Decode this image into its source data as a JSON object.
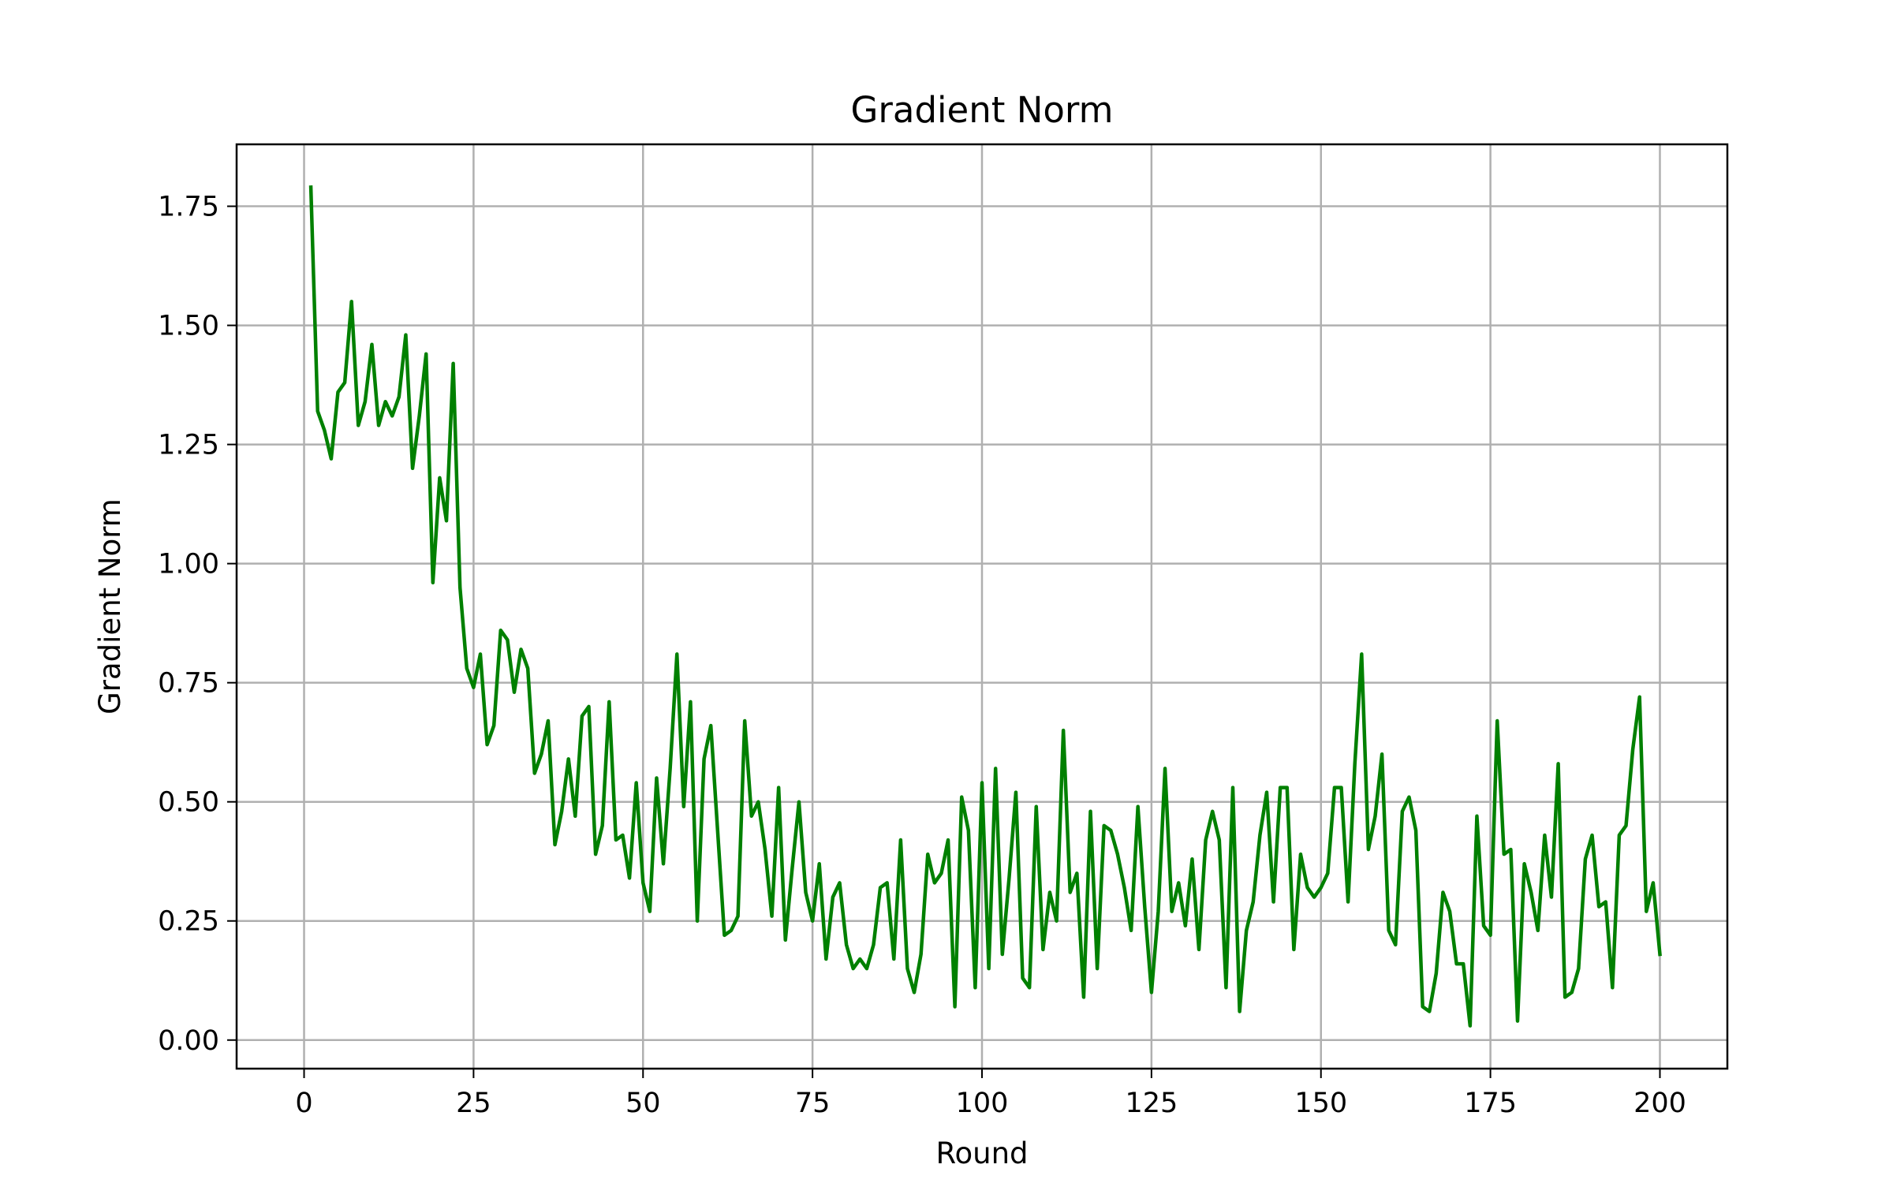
{
  "chart_data": {
    "type": "line",
    "title": "Gradient Norm",
    "xlabel": "Round",
    "ylabel": "Gradient Norm",
    "xlim": [
      -9.95,
      209.95
    ],
    "ylim": [
      -0.06,
      1.88
    ],
    "grid": true,
    "legend": "none",
    "color": "#008000",
    "x_ticks": [
      0,
      25,
      50,
      75,
      100,
      125,
      150,
      175,
      200
    ],
    "x_tick_labels": [
      "0",
      "25",
      "50",
      "75",
      "100",
      "125",
      "150",
      "175",
      "200"
    ],
    "y_ticks": [
      0.0,
      0.25,
      0.5,
      0.75,
      1.0,
      1.25,
      1.5,
      1.75
    ],
    "y_tick_labels": [
      "0.00",
      "0.25",
      "0.50",
      "0.75",
      "1.00",
      "1.25",
      "1.50",
      "1.75"
    ],
    "series": [
      {
        "x": [
          1,
          2,
          3,
          4,
          5,
          6,
          7,
          8,
          9,
          10,
          11,
          12,
          13,
          14,
          15,
          16,
          17,
          18,
          19,
          20,
          21,
          22,
          23,
          24,
          25,
          26,
          27,
          28,
          29,
          30,
          31,
          32,
          33,
          34,
          35,
          36,
          37,
          38,
          39,
          40,
          41,
          42,
          43,
          44,
          45,
          46,
          47,
          48,
          49,
          50,
          51,
          52,
          53,
          54,
          55,
          56,
          57,
          58,
          59,
          60,
          61,
          62,
          63,
          64,
          65,
          66,
          67,
          68,
          69,
          70,
          71,
          72,
          73,
          74,
          75,
          76,
          77,
          78,
          79,
          80,
          81,
          82,
          83,
          84,
          85,
          86,
          87,
          88,
          89,
          90,
          91,
          92,
          93,
          94,
          95,
          96,
          97,
          98,
          99,
          100,
          101,
          102,
          103,
          104,
          105,
          106,
          107,
          108,
          109,
          110,
          111,
          112,
          113,
          114,
          115,
          116,
          117,
          118,
          119,
          120,
          121,
          122,
          123,
          124,
          125,
          126,
          127,
          128,
          129,
          130,
          131,
          132,
          133,
          134,
          135,
          136,
          137,
          138,
          139,
          140,
          141,
          142,
          143,
          144,
          145,
          146,
          147,
          148,
          149,
          150,
          151,
          152,
          153,
          154,
          155,
          156,
          157,
          158,
          159,
          160,
          161,
          162,
          163,
          164,
          165,
          166,
          167,
          168,
          169,
          170,
          171,
          172,
          173,
          174,
          175,
          176,
          177,
          178,
          179,
          180,
          181,
          182,
          183,
          184,
          185,
          186,
          187,
          188,
          189,
          190,
          191,
          192,
          193,
          194,
          195,
          196,
          197,
          198,
          199,
          200
        ],
        "values": [
          1.79,
          1.32,
          1.28,
          1.22,
          1.36,
          1.38,
          1.55,
          1.29,
          1.34,
          1.46,
          1.29,
          1.34,
          1.31,
          1.35,
          1.48,
          1.2,
          1.31,
          1.44,
          0.96,
          1.18,
          1.09,
          1.42,
          0.95,
          0.78,
          0.74,
          0.81,
          0.62,
          0.66,
          0.86,
          0.84,
          0.73,
          0.82,
          0.78,
          0.56,
          0.6,
          0.67,
          0.41,
          0.48,
          0.59,
          0.47,
          0.68,
          0.7,
          0.39,
          0.45,
          0.71,
          0.42,
          0.43,
          0.34,
          0.54,
          0.33,
          0.27,
          0.55,
          0.37,
          0.57,
          0.81,
          0.49,
          0.71,
          0.25,
          0.59,
          0.66,
          0.44,
          0.22,
          0.23,
          0.26,
          0.67,
          0.47,
          0.5,
          0.4,
          0.26,
          0.53,
          0.21,
          0.36,
          0.5,
          0.31,
          0.25,
          0.37,
          0.17,
          0.3,
          0.33,
          0.2,
          0.15,
          0.17,
          0.15,
          0.2,
          0.32,
          0.33,
          0.17,
          0.42,
          0.15,
          0.1,
          0.18,
          0.39,
          0.33,
          0.35,
          0.42,
          0.07,
          0.51,
          0.44,
          0.11,
          0.54,
          0.15,
          0.57,
          0.18,
          0.34,
          0.52,
          0.13,
          0.11,
          0.49,
          0.19,
          0.31,
          0.25,
          0.65,
          0.31,
          0.35,
          0.09,
          0.48,
          0.15,
          0.45,
          0.44,
          0.39,
          0.32,
          0.23,
          0.49,
          0.28,
          0.1,
          0.27,
          0.57,
          0.27,
          0.33,
          0.24,
          0.38,
          0.19,
          0.42,
          0.48,
          0.42,
          0.11,
          0.53,
          0.06,
          0.23,
          0.29,
          0.43,
          0.52,
          0.29,
          0.53,
          0.53,
          0.19,
          0.39,
          0.32,
          0.3,
          0.32,
          0.35,
          0.53,
          0.53,
          0.29,
          0.58,
          0.81,
          0.4,
          0.47,
          0.6,
          0.23,
          0.2,
          0.48,
          0.51,
          0.44,
          0.07,
          0.06,
          0.14,
          0.31,
          0.27,
          0.16,
          0.16,
          0.03,
          0.47,
          0.24,
          0.22,
          0.67,
          0.39,
          0.4,
          0.04,
          0.37,
          0.31,
          0.23,
          0.43,
          0.3,
          0.58,
          0.09,
          0.1,
          0.15,
          0.38,
          0.43,
          0.28,
          0.29,
          0.11,
          0.43,
          0.45,
          0.61,
          0.72,
          0.27,
          0.33,
          0.18
        ]
      }
    ]
  }
}
